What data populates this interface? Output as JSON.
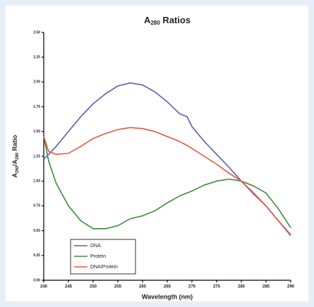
{
  "chart_data": {
    "type": "line",
    "title": {
      "main": "A",
      "sub": "280",
      "rest": " Ratios"
    },
    "x_label": "Wavelength (nm)",
    "y_label": {
      "parts": [
        "A",
        "260",
        "/A",
        "280",
        " Ratio"
      ]
    },
    "x": [
      240,
      241,
      242.5,
      245,
      247.5,
      250,
      252.5,
      255,
      257.5,
      260,
      262.5,
      265,
      267.5,
      269,
      270,
      272.5,
      275,
      277.5,
      280,
      282.5,
      285,
      287.5,
      290
    ],
    "series": [
      {
        "name": "DNA",
        "color": "#5b5bb5",
        "values": [
          1.22,
          1.27,
          1.35,
          1.5,
          1.65,
          1.78,
          1.88,
          1.96,
          1.99,
          1.97,
          1.9,
          1.8,
          1.68,
          1.65,
          1.55,
          1.4,
          1.27,
          1.14,
          1.0,
          0.87,
          0.75,
          0.6,
          0.45
        ]
      },
      {
        "name": "Protein",
        "color": "#3d8a3d",
        "values": [
          1.45,
          1.2,
          0.98,
          0.75,
          0.6,
          0.52,
          0.52,
          0.55,
          0.62,
          0.65,
          0.7,
          0.78,
          0.85,
          0.88,
          0.9,
          0.96,
          1.0,
          1.02,
          1.0,
          0.95,
          0.88,
          0.72,
          0.53
        ]
      },
      {
        "name": "DNA/Protein",
        "color": "#e8553a",
        "values": [
          1.45,
          1.3,
          1.27,
          1.28,
          1.35,
          1.43,
          1.48,
          1.52,
          1.54,
          1.53,
          1.5,
          1.45,
          1.4,
          1.36,
          1.33,
          1.25,
          1.17,
          1.08,
          1.0,
          0.88,
          0.75,
          0.6,
          0.46
        ]
      }
    ],
    "xlim": [
      240,
      290
    ],
    "xticks": [
      240,
      245,
      250,
      255,
      260,
      265,
      270,
      275,
      280,
      285,
      290
    ],
    "ylim": [
      0,
      2.5
    ],
    "yticks": [
      {
        "value": 0,
        "label": "0.00"
      },
      {
        "value": 0.25,
        "label": "0.25"
      },
      {
        "value": 0.5,
        "label": "0.50"
      },
      {
        "value": 0.75,
        "label": "0.75"
      },
      {
        "value": 1,
        "label": "1.00"
      },
      {
        "value": 1.25,
        "label": "1.25"
      },
      {
        "value": 1.5,
        "label": "1.50"
      },
      {
        "value": 1.75,
        "label": "1.75"
      },
      {
        "value": 2,
        "label": "2.00"
      },
      {
        "value": 2.25,
        "label": "2.25"
      },
      {
        "value": 2.5,
        "label": "2.50"
      }
    ],
    "legend": "bottom-left",
    "grid": false
  }
}
